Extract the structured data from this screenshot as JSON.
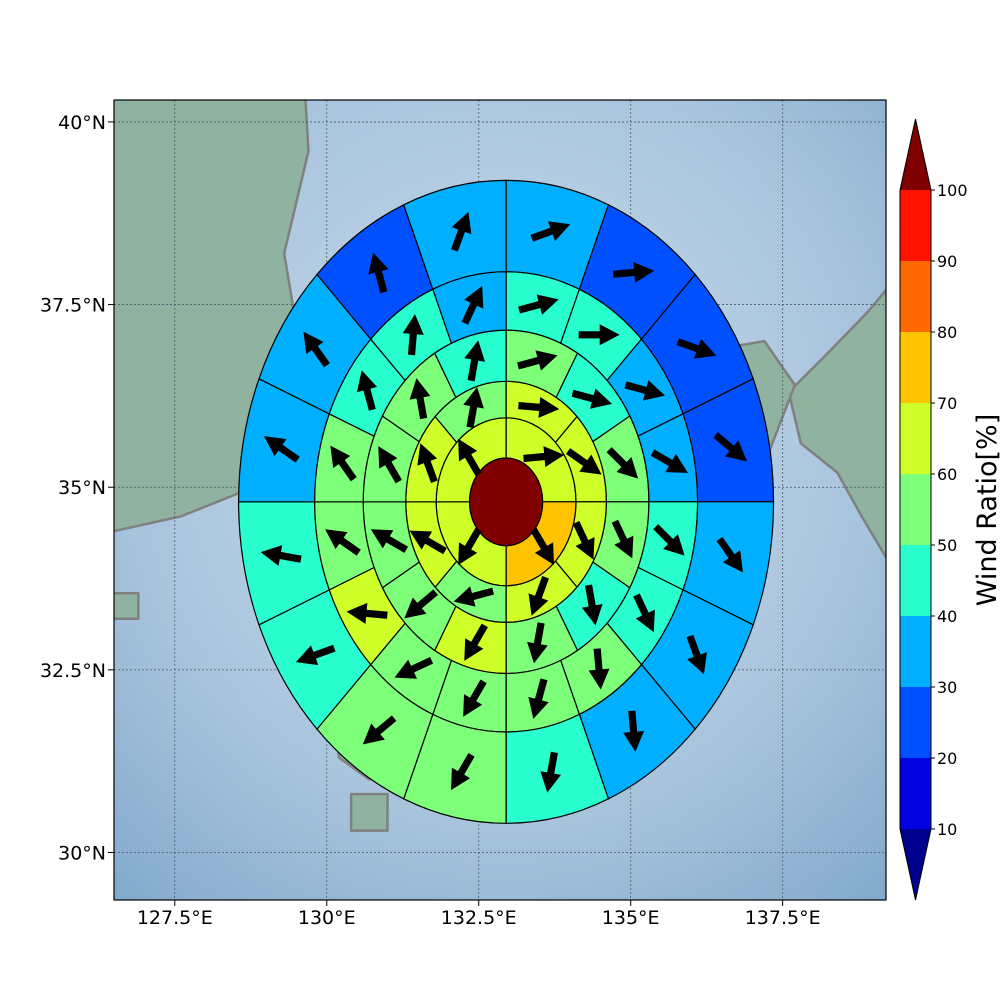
{
  "chart_data": {
    "type": "polar-sector-map",
    "xlabel": "",
    "ylabel": "",
    "x_range": [
      126.5,
      139.2
    ],
    "y_range": [
      29.35,
      40.3
    ],
    "x_ticks": [
      127.5,
      130,
      132.5,
      135,
      137.5
    ],
    "x_tick_labels": [
      "127.5°E",
      "130°E",
      "132.5°E",
      "135°E",
      "137.5°E"
    ],
    "y_ticks": [
      30,
      32.5,
      35,
      37.5,
      40
    ],
    "y_tick_labels": [
      "30°N",
      "32.5°N",
      "35°N",
      "37.5°N",
      "40°N"
    ],
    "grid": true,
    "center": {
      "lon": 132.95,
      "lat": 34.8,
      "value": 100
    },
    "ring_radii_deg": [
      0.6,
      1.15,
      1.65,
      2.35,
      3.15,
      4.4
    ],
    "sectors_per_ring": [
      4,
      8,
      12,
      16,
      16
    ],
    "ring_values": [
      [
        60,
        70,
        60,
        60
      ],
      [
        60,
        60,
        60,
        60,
        50,
        60,
        60,
        50
      ],
      [
        50,
        40,
        50,
        50,
        40,
        50,
        60,
        50,
        50,
        50,
        50,
        40
      ],
      [
        40,
        40,
        30,
        30,
        40,
        40,
        50,
        50,
        50,
        50,
        60,
        50,
        50,
        40,
        40,
        30
      ],
      [
        30,
        20,
        20,
        20,
        30,
        30,
        30,
        40,
        50,
        50,
        40,
        40,
        30,
        30,
        20,
        30
      ]
    ],
    "ring_arrow_dirs": [
      [
        85,
        150,
        210,
        330
      ],
      [
        95,
        125,
        155,
        200,
        255,
        300,
        340,
        10
      ],
      [
        75,
        105,
        135,
        155,
        170,
        190,
        210,
        230,
        300,
        330,
        350,
        10
      ],
      [
        75,
        90,
        105,
        120,
        135,
        155,
        175,
        195,
        210,
        245,
        275,
        305,
        325,
        345,
        5,
        25
      ],
      [
        70,
        85,
        110,
        130,
        145,
        160,
        175,
        190,
        210,
        230,
        250,
        280,
        305,
        325,
        345,
        20
      ]
    ],
    "colorbar": {
      "label": "Wind Ratio[%]",
      "levels": [
        10,
        20,
        30,
        40,
        50,
        60,
        70,
        80,
        90,
        100
      ],
      "tick_labels": [
        "10",
        "20",
        "30",
        "40",
        "50",
        "60",
        "70",
        "80",
        "90",
        "100"
      ],
      "colors": [
        "#0000e0",
        "#0050ff",
        "#00b0ff",
        "#29ffce",
        "#7dff7a",
        "#ceff29",
        "#ffc400",
        "#ff6a00",
        "#ff1300"
      ],
      "under_color": "#00008f",
      "over_color": "#800000"
    },
    "map_colors": {
      "sea": "#a8c4dd",
      "land": "#8fb3a0",
      "coast": "#808080"
    }
  }
}
